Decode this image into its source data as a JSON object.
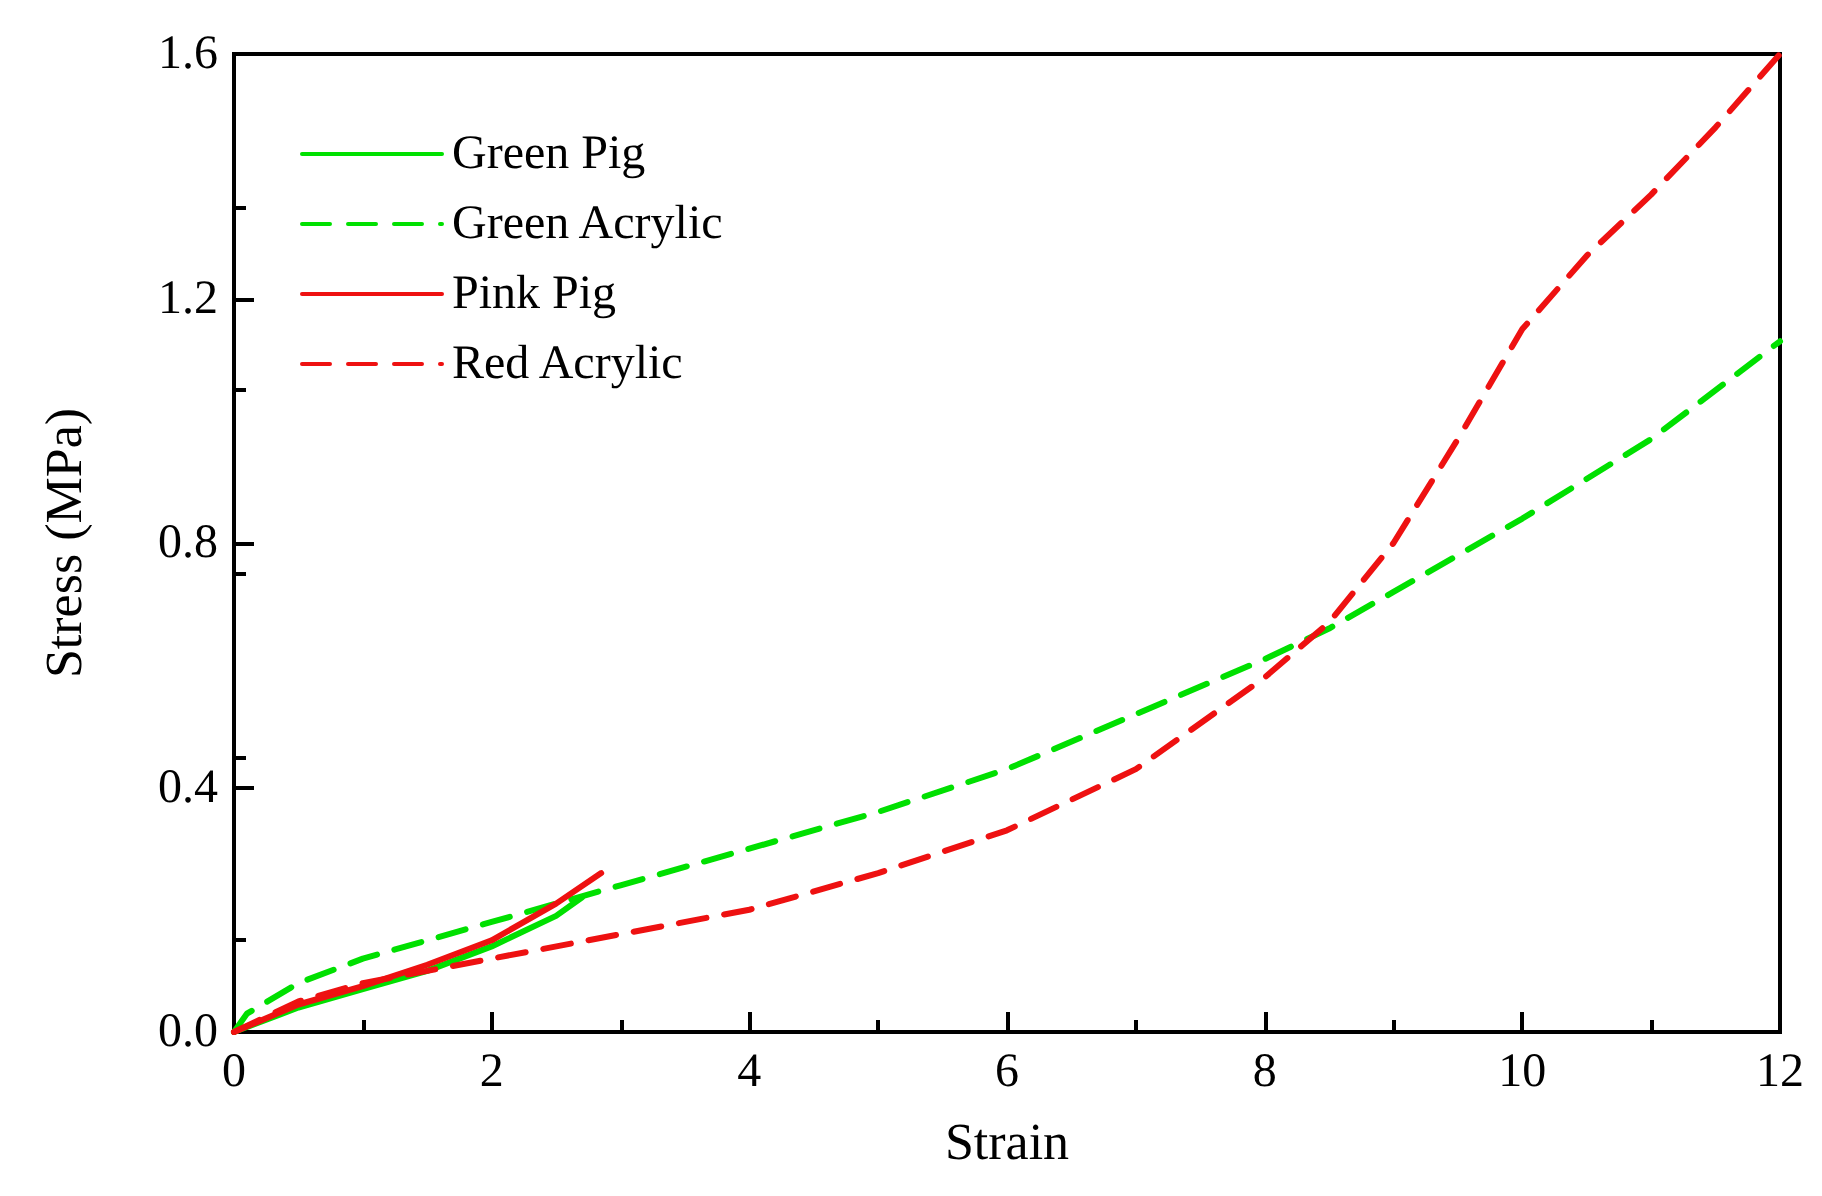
{
  "chart_data": {
    "type": "line",
    "xlabel": "Strain",
    "ylabel": "Stress (MPa)",
    "xlim": [
      0,
      12
    ],
    "xticks": [
      0,
      2,
      4,
      6,
      8,
      10,
      12
    ],
    "ylim": [
      0,
      1.6
    ],
    "yticks": [
      {
        "value": 0,
        "label": "0.0"
      },
      0.4,
      0.8,
      1.2,
      1.6
    ],
    "grid": false,
    "legend": "top left",
    "marker": "none",
    "series": [
      {
        "name": "Green Pig",
        "color": "#00e000",
        "line_style": "solid",
        "x": [
          0,
          0.5,
          1,
          1.5,
          2,
          2.5,
          2.7
        ],
        "values": [
          0,
          0.04,
          0.07,
          0.1,
          0.14,
          0.19,
          0.22
        ]
      },
      {
        "name": "Green Acrylic",
        "color": "#00e000",
        "line_style": "dashed",
        "x": [
          0,
          0.1,
          0.5,
          1,
          2,
          3,
          4,
          5,
          6,
          7,
          8,
          8.5,
          9,
          10,
          11,
          12
        ],
        "values": [
          0,
          0.03,
          0.08,
          0.12,
          0.18,
          0.24,
          0.3,
          0.36,
          0.43,
          0.52,
          0.61,
          0.66,
          0.72,
          0.84,
          0.97,
          1.13
        ]
      },
      {
        "name": "Pink Pig",
        "color": "#ee1111",
        "line_style": "solid",
        "x": [
          0,
          0.5,
          1,
          1.5,
          2,
          2.5,
          2.85
        ],
        "values": [
          0,
          0.045,
          0.075,
          0.11,
          0.15,
          0.21,
          0.26
        ]
      },
      {
        "name": "Red Acrylic",
        "color": "#ee1111",
        "line_style": "dashed",
        "x": [
          0,
          0.5,
          1,
          2,
          3,
          4,
          5,
          6,
          7,
          8,
          8.5,
          9,
          9.5,
          10,
          10.5,
          11,
          11.5,
          12
        ],
        "values": [
          0,
          0.05,
          0.08,
          0.12,
          0.16,
          0.2,
          0.26,
          0.33,
          0.43,
          0.58,
          0.67,
          0.8,
          0.97,
          1.15,
          1.27,
          1.37,
          1.48,
          1.6
        ]
      }
    ]
  }
}
